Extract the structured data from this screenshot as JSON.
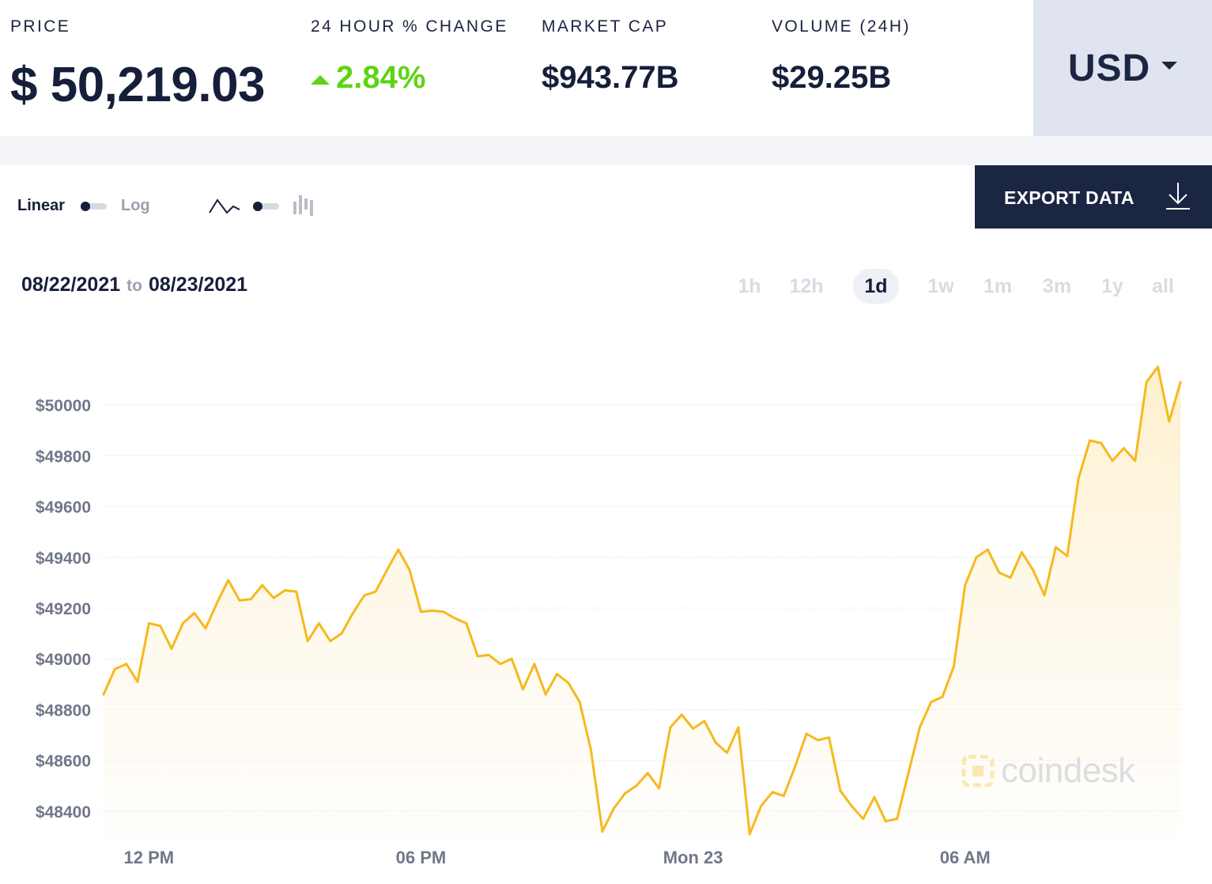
{
  "stats": {
    "price": {
      "label": "PRICE",
      "value": "$ 50,219.03"
    },
    "change": {
      "label": "24 HOUR % CHANGE",
      "value": "2.84%"
    },
    "market_cap": {
      "label": "MARKET CAP",
      "value": "$943.77B"
    },
    "volume": {
      "label": "VOLUME (24H)",
      "value": "$29.25B"
    }
  },
  "currency": {
    "selected": "USD"
  },
  "toolbar": {
    "scale_linear": "Linear",
    "scale_log": "Log",
    "export_label": "EXPORT DATA"
  },
  "range": {
    "from": "08/22/2021",
    "to_word": "to",
    "to": "08/23/2021"
  },
  "periods": [
    "1h",
    "12h",
    "1d",
    "1w",
    "1m",
    "3m",
    "1y",
    "all"
  ],
  "active_period": "1d",
  "watermark": "coindesk",
  "colors": {
    "line": "#f6b91d",
    "positive": "#5fd314",
    "dark": "#1b2643",
    "currency_bg": "#dfe4f0"
  },
  "chart_data": {
    "type": "area",
    "x_tick_labels": [
      "12 PM",
      "06 PM",
      "Mon 23",
      "06 AM"
    ],
    "x_tick_values": [
      12,
      18,
      24,
      30
    ],
    "y_tick_labels": [
      "$48400",
      "$48600",
      "$48800",
      "$49000",
      "$49200",
      "$49400",
      "$49600",
      "$49800",
      "$50000"
    ],
    "y_tick_values": [
      48400,
      48600,
      48800,
      49000,
      49200,
      49400,
      49600,
      49800,
      50000
    ],
    "ylim": [
      48300,
      50150
    ],
    "xlim": [
      11.0,
      34.8
    ],
    "grid": true,
    "x": [
      11.0,
      11.25,
      11.5,
      11.75,
      12.0,
      12.25,
      12.5,
      12.75,
      13.0,
      13.25,
      13.5,
      13.75,
      14.0,
      14.25,
      14.5,
      14.75,
      15.0,
      15.25,
      15.5,
      15.75,
      16.0,
      16.25,
      16.5,
      16.75,
      17.0,
      17.25,
      17.5,
      17.75,
      18.0,
      18.25,
      18.5,
      18.75,
      19.0,
      19.25,
      19.5,
      19.75,
      20.0,
      20.25,
      20.5,
      20.75,
      21.0,
      21.25,
      21.5,
      21.75,
      22.0,
      22.25,
      22.5,
      22.75,
      23.0,
      23.25,
      23.5,
      23.75,
      24.0,
      24.25,
      24.5,
      24.75,
      25.0,
      25.25,
      25.5,
      25.75,
      26.0,
      26.25,
      26.5,
      26.75,
      27.0,
      27.25,
      27.5,
      27.75,
      28.0,
      28.25,
      28.5,
      28.75,
      29.0,
      29.25,
      29.5,
      29.75,
      30.0,
      30.25,
      30.5,
      30.75,
      31.0,
      31.25,
      31.5,
      31.75,
      32.0,
      32.25,
      32.5,
      32.75,
      33.0,
      33.25,
      33.5,
      33.75,
      34.0,
      34.25,
      34.5,
      34.75
    ],
    "values": [
      48860,
      48960,
      48980,
      48910,
      49140,
      49130,
      49040,
      49140,
      49180,
      49120,
      49220,
      49310,
      49230,
      49235,
      49290,
      49240,
      49270,
      49265,
      49070,
      49140,
      49070,
      49100,
      49180,
      49250,
      49265,
      49350,
      49430,
      49350,
      49185,
      49190,
      49185,
      49160,
      49140,
      49010,
      49015,
      48980,
      49000,
      48880,
      48980,
      48860,
      48940,
      48905,
      48830,
      48640,
      48320,
      48410,
      48470,
      48500,
      48550,
      48490,
      48730,
      48780,
      48725,
      48755,
      48670,
      48630,
      48730,
      48310,
      48420,
      48475,
      48460,
      48575,
      48705,
      48680,
      48690,
      48480,
      48420,
      48370,
      48455,
      48360,
      48370,
      48550,
      48730,
      48830,
      48850,
      48970,
      49290,
      49400,
      49430,
      49340,
      49320,
      49420,
      49350,
      49250,
      49440,
      49405,
      49710,
      49860,
      49850,
      49780,
      49830,
      49780,
      50090,
      50150,
      49935,
      50090
    ]
  }
}
